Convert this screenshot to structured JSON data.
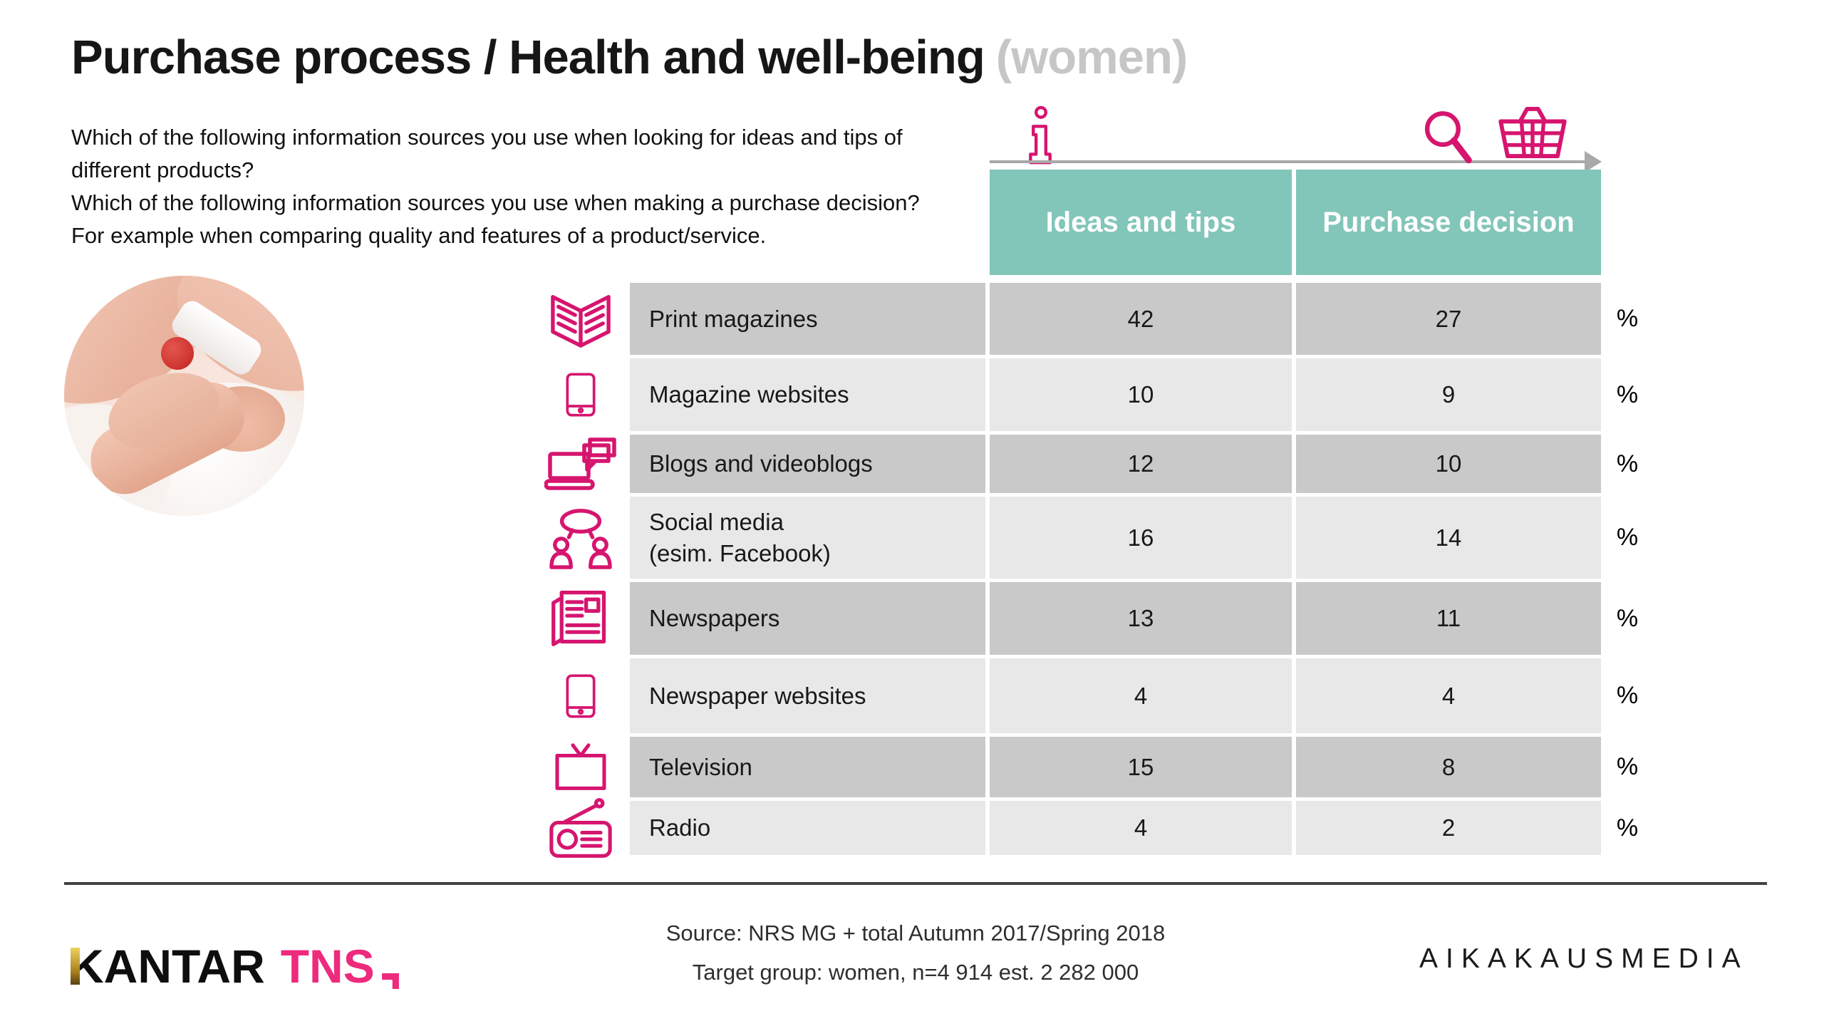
{
  "title": {
    "main": "Purchase process / Health and well-being",
    "suffix": "(women)"
  },
  "questions": {
    "q1_line1": "Which of the following information sources you use when looking for ideas and tips of",
    "q1_line2": "different products?",
    "q2_line1": "Which of the following information sources you use when making a purchase decision?",
    "q2_line2": "For example when comparing quality and features of a product/service."
  },
  "table": {
    "columns": [
      "Ideas and tips",
      "Purchase decision"
    ],
    "unit": "%",
    "rows": [
      {
        "icon": "magazine-icon",
        "label_lines": [
          "Print magazines"
        ],
        "ideas": "42",
        "purchase": "27"
      },
      {
        "icon": "tablet-icon",
        "label_lines": [
          "Magazine websites"
        ],
        "ideas": "10",
        "purchase": "9"
      },
      {
        "icon": "laptop-blog-icon",
        "label_lines": [
          "Blogs and videoblogs"
        ],
        "ideas": "12",
        "purchase": "10"
      },
      {
        "icon": "social-media-icon",
        "label_lines": [
          "Social media",
          "(esim. Facebook)"
        ],
        "ideas": "16",
        "purchase": "14"
      },
      {
        "icon": "newspaper-icon",
        "label_lines": [
          "Newspapers"
        ],
        "ideas": "13",
        "purchase": "11"
      },
      {
        "icon": "tablet-icon",
        "label_lines": [
          "Newspaper websites"
        ],
        "ideas": "4",
        "purchase": "4"
      },
      {
        "icon": "tv-icon",
        "label_lines": [
          "Television"
        ],
        "ideas": "15",
        "purchase": "8"
      },
      {
        "icon": "radio-icon",
        "label_lines": [
          "Radio"
        ],
        "ideas": "4",
        "purchase": "2"
      }
    ]
  },
  "chart_data": {
    "type": "table",
    "title": "Purchase process / Health and well-being (women)",
    "categories": [
      "Print magazines",
      "Magazine websites",
      "Blogs and videoblogs",
      "Social media (esim. Facebook)",
      "Newspapers",
      "Newspaper websites",
      "Television",
      "Radio"
    ],
    "series": [
      {
        "name": "Ideas and tips",
        "values": [
          42,
          10,
          12,
          16,
          13,
          4,
          15,
          4
        ]
      },
      {
        "name": "Purchase decision",
        "values": [
          27,
          9,
          10,
          14,
          11,
          4,
          8,
          2
        ]
      }
    ],
    "unit": "%"
  },
  "footer": {
    "source_line1": "Source: NRS MG + total Autumn 2017/Spring 2018",
    "source_line2": "Target group: women, n=4 914 est. 2 282 000",
    "kantar": "KANTAR",
    "tns": "TNS",
    "aikakausmedia": "AIKAKAUSMEDIA"
  },
  "colors": {
    "accent_magenta": "#d6156f",
    "header_teal": "#82c5b9",
    "row_dark": "#c9c9c9",
    "row_light": "#e8e8e8",
    "title_gray": "#c6c6c6",
    "arrow_gray": "#a9a9a9",
    "tns_pink": "#ee2a7c"
  }
}
